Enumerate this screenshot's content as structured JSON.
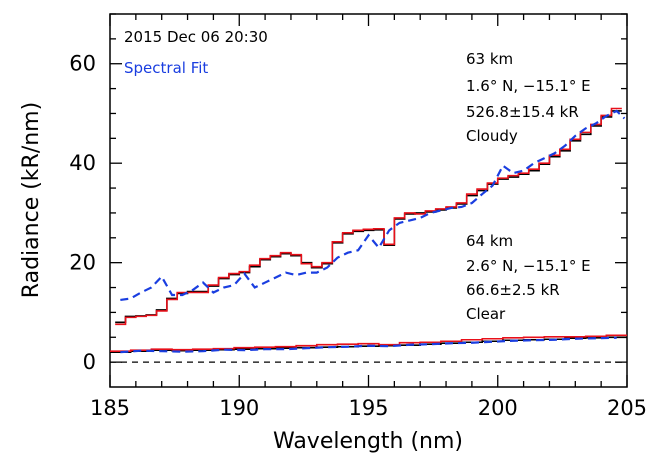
{
  "chart_data": {
    "type": "line",
    "xlabel": "Wavelength (nm)",
    "ylabel": "Radiance (kR/nm)",
    "xlim": [
      185,
      205
    ],
    "ylim": [
      -5,
      70
    ],
    "xticks": [
      185,
      190,
      195,
      200,
      205
    ],
    "yticks": [
      0,
      20,
      40,
      60
    ],
    "grid": false,
    "zero_line": {
      "y": 0,
      "style": "dashed",
      "color": "#000000"
    },
    "annotations": {
      "date": "2015 Dec 06 20:30",
      "legend_fit": "Spectral Fit",
      "cloudy": {
        "alt": "63 km",
        "coords": "1.6° N, −15.1° E",
        "total": "526.8±15.4 kR",
        "condition": "Cloudy"
      },
      "clear": {
        "alt": "64 km",
        "coords": "2.6° N, −15.1° E",
        "total": "66.6±2.5 kR",
        "condition": "Clear"
      }
    },
    "series": [
      {
        "group": "cloudy",
        "style": "step",
        "color": "#000000",
        "x": [
          185.4,
          185.8,
          186.2,
          186.6,
          187.0,
          187.4,
          187.8,
          188.2,
          188.6,
          189.0,
          189.4,
          189.8,
          190.2,
          190.6,
          191.0,
          191.4,
          191.8,
          192.2,
          192.6,
          193.0,
          193.4,
          193.8,
          194.2,
          194.6,
          195.0,
          195.4,
          195.8,
          196.2,
          196.6,
          197.0,
          197.4,
          197.8,
          198.2,
          198.6,
          199.0,
          199.4,
          199.8,
          200.2,
          200.6,
          201.0,
          201.4,
          201.8,
          202.2,
          202.6,
          203.0,
          203.4,
          203.8,
          204.2,
          204.6
        ],
        "y": [
          8.0,
          9.2,
          9.3,
          9.5,
          10.5,
          12.8,
          13.8,
          14.2,
          14.2,
          15.3,
          16.8,
          17.6,
          18.0,
          19.2,
          20.6,
          21.2,
          21.8,
          21.4,
          20.0,
          19.0,
          19.8,
          24.0,
          25.8,
          26.3,
          26.5,
          26.6,
          23.5,
          28.8,
          29.8,
          30.0,
          30.2,
          30.6,
          31.0,
          31.8,
          33.5,
          34.5,
          35.8,
          36.8,
          37.2,
          37.8,
          38.5,
          39.8,
          41.3,
          42.5,
          44.5,
          45.8,
          47.5,
          49.3,
          50.5
        ]
      },
      {
        "group": "cloudy",
        "style": "step",
        "color": "#e8101a",
        "x": [
          185.4,
          185.8,
          186.2,
          186.6,
          187.0,
          187.4,
          187.8,
          188.2,
          188.6,
          189.0,
          189.4,
          189.8,
          190.2,
          190.6,
          191.0,
          191.4,
          191.8,
          192.2,
          192.6,
          193.0,
          193.4,
          193.8,
          194.2,
          194.6,
          195.0,
          195.4,
          195.8,
          196.2,
          196.6,
          197.0,
          197.4,
          197.8,
          198.2,
          198.6,
          199.0,
          199.4,
          199.8,
          200.2,
          200.6,
          201.0,
          201.4,
          201.8,
          202.2,
          202.6,
          203.0,
          203.4,
          203.8,
          204.2,
          204.6
        ],
        "y": [
          7.6,
          9.0,
          9.2,
          9.4,
          10.3,
          12.6,
          14.0,
          14.0,
          14.0,
          15.5,
          17.0,
          17.8,
          18.2,
          19.5,
          20.8,
          21.4,
          22.0,
          21.6,
          19.8,
          19.2,
          20.0,
          24.2,
          26.0,
          26.5,
          26.7,
          26.8,
          23.7,
          29.0,
          30.0,
          29.8,
          30.4,
          30.8,
          31.2,
          32.0,
          33.8,
          34.8,
          36.0,
          37.0,
          37.5,
          38.0,
          38.8,
          40.0,
          41.6,
          42.8,
          44.8,
          46.2,
          47.8,
          49.6,
          51.0
        ]
      },
      {
        "group": "cloudy",
        "style": "dashed",
        "color": "#1a3ee0",
        "name": "Spectral Fit",
        "x": [
          185.4,
          185.8,
          186.2,
          186.6,
          187.0,
          187.4,
          187.8,
          188.2,
          188.6,
          189.0,
          189.4,
          189.8,
          190.2,
          190.6,
          191.0,
          191.4,
          191.8,
          192.2,
          192.6,
          193.0,
          193.4,
          193.8,
          194.2,
          194.6,
          195.0,
          195.4,
          195.8,
          196.2,
          196.6,
          197.0,
          197.4,
          197.8,
          198.2,
          198.6,
          199.0,
          199.4,
          199.8,
          200.2,
          200.6,
          201.0,
          201.4,
          201.8,
          202.2,
          202.6,
          203.0,
          203.4,
          203.8,
          204.2,
          204.6,
          204.9
        ],
        "y": [
          12.5,
          12.8,
          14.0,
          15.0,
          17.2,
          13.5,
          13.5,
          14.5,
          16.0,
          14.0,
          15.0,
          15.5,
          17.8,
          15.0,
          16.0,
          17.0,
          18.0,
          17.5,
          18.0,
          18.0,
          19.0,
          21.0,
          22.0,
          22.5,
          25.5,
          23.0,
          26.5,
          28.0,
          28.5,
          29.0,
          30.0,
          30.5,
          31.0,
          31.2,
          32.0,
          33.8,
          35.5,
          39.5,
          38.0,
          38.5,
          40.0,
          41.0,
          42.0,
          43.5,
          45.5,
          47.0,
          48.0,
          49.5,
          50.5,
          49.0
        ]
      },
      {
        "group": "clear",
        "style": "step",
        "color": "#000000",
        "x": [
          185.4,
          186.2,
          187.0,
          187.8,
          188.6,
          189.4,
          190.2,
          191.0,
          191.8,
          192.6,
          193.4,
          194.2,
          195.0,
          195.8,
          196.6,
          197.4,
          198.2,
          199.0,
          199.8,
          200.6,
          201.4,
          202.2,
          203.0,
          203.8,
          204.6
        ],
        "y": [
          2.0,
          2.2,
          2.4,
          2.3,
          2.4,
          2.5,
          2.6,
          2.7,
          2.8,
          2.9,
          3.0,
          3.1,
          3.2,
          3.3,
          3.4,
          3.6,
          3.8,
          4.0,
          4.2,
          4.4,
          4.5,
          4.6,
          4.8,
          4.9,
          5.0
        ]
      },
      {
        "group": "clear",
        "style": "step",
        "color": "#e8101a",
        "x": [
          185.4,
          186.2,
          187.0,
          187.8,
          188.6,
          189.4,
          190.2,
          191.0,
          191.8,
          192.6,
          193.4,
          194.2,
          195.0,
          195.8,
          196.6,
          197.4,
          198.2,
          199.0,
          199.8,
          200.6,
          201.4,
          202.2,
          203.0,
          203.8,
          204.6
        ],
        "y": [
          2.2,
          2.4,
          2.6,
          2.5,
          2.6,
          2.7,
          2.9,
          3.0,
          3.1,
          3.3,
          3.5,
          3.6,
          3.7,
          3.5,
          3.9,
          4.0,
          4.2,
          4.5,
          4.7,
          4.9,
          5.0,
          5.1,
          5.1,
          5.2,
          5.4
        ]
      },
      {
        "group": "clear",
        "style": "dashed",
        "color": "#1a3ee0",
        "name": "Spectral Fit",
        "x": [
          185.4,
          186.2,
          187.0,
          187.8,
          188.6,
          189.4,
          190.2,
          191.0,
          191.8,
          192.6,
          193.4,
          194.2,
          195.0,
          195.8,
          196.6,
          197.4,
          198.2,
          199.0,
          199.8,
          200.6,
          201.4,
          202.2,
          203.0,
          203.8,
          204.6
        ],
        "y": [
          2.0,
          2.3,
          2.2,
          2.1,
          2.2,
          2.5,
          2.4,
          2.6,
          2.6,
          2.8,
          3.0,
          3.1,
          3.3,
          3.2,
          3.5,
          3.6,
          3.8,
          3.9,
          4.1,
          4.3,
          4.4,
          4.5,
          4.7,
          4.8,
          4.9
        ]
      }
    ]
  }
}
